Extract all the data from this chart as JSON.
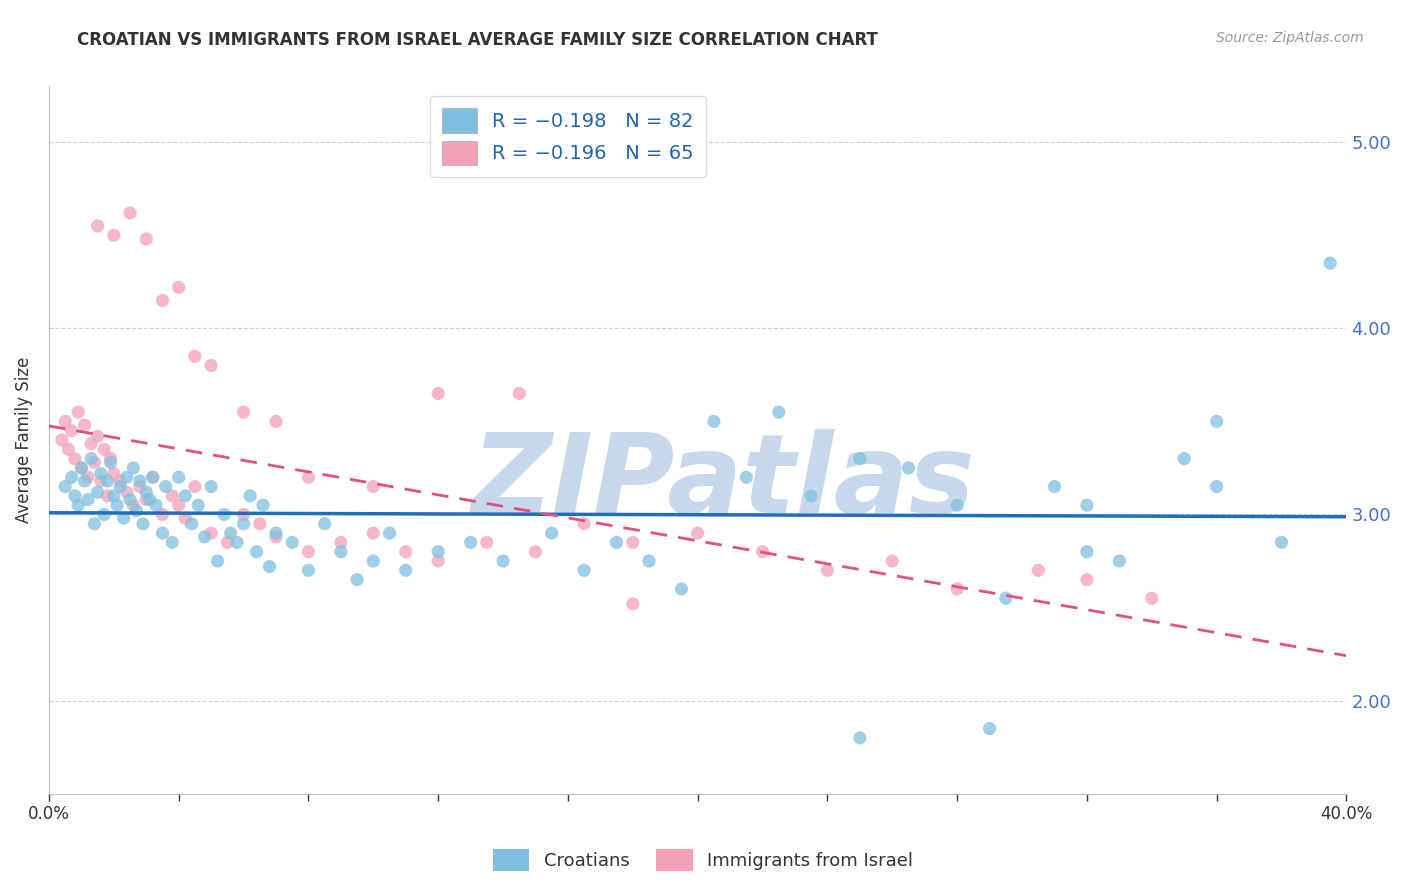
{
  "title": "CROATIAN VS IMMIGRANTS FROM ISRAEL AVERAGE FAMILY SIZE CORRELATION CHART",
  "source": "Source: ZipAtlas.com",
  "ylabel": "Average Family Size",
  "xlim": [
    0.0,
    0.4
  ],
  "ylim": [
    1.5,
    5.3
  ],
  "yticks": [
    2.0,
    3.0,
    4.0,
    5.0
  ],
  "xticks": [
    0.0,
    0.04,
    0.08,
    0.12,
    0.16,
    0.2,
    0.24,
    0.28,
    0.32,
    0.36,
    0.4
  ],
  "xtick_labels": [
    "0.0%",
    "",
    "",
    "",
    "",
    "",
    "",
    "",
    "",
    "",
    "40.0%"
  ],
  "legend_label1": "Croatians",
  "legend_label2": "Immigrants from Israel",
  "blue_color": "#7fbfdf",
  "pink_color": "#f4a0b8",
  "blue_line_color": "#1f6fbf",
  "pink_line_color": "#e05080",
  "background": "#ffffff",
  "watermark": "ZIPatlas",
  "watermark_color": "#c8d8ec",
  "blue_x": [
    0.005,
    0.007,
    0.008,
    0.009,
    0.01,
    0.011,
    0.012,
    0.013,
    0.014,
    0.015,
    0.016,
    0.017,
    0.018,
    0.019,
    0.02,
    0.021,
    0.022,
    0.023,
    0.024,
    0.025,
    0.026,
    0.027,
    0.028,
    0.029,
    0.03,
    0.031,
    0.032,
    0.033,
    0.035,
    0.036,
    0.038,
    0.04,
    0.042,
    0.044,
    0.046,
    0.048,
    0.05,
    0.052,
    0.054,
    0.056,
    0.058,
    0.06,
    0.062,
    0.064,
    0.066,
    0.068,
    0.07,
    0.075,
    0.08,
    0.085,
    0.09,
    0.095,
    0.1,
    0.105,
    0.11,
    0.12,
    0.13,
    0.14,
    0.155,
    0.165,
    0.175,
    0.185,
    0.195,
    0.205,
    0.215,
    0.225,
    0.235,
    0.25,
    0.265,
    0.28,
    0.295,
    0.31,
    0.32,
    0.33,
    0.35,
    0.36,
    0.38,
    0.395,
    0.32,
    0.36,
    0.29,
    0.25
  ],
  "blue_y": [
    3.15,
    3.2,
    3.1,
    3.05,
    3.25,
    3.18,
    3.08,
    3.3,
    2.95,
    3.12,
    3.22,
    3.0,
    3.18,
    3.28,
    3.1,
    3.05,
    3.15,
    2.98,
    3.2,
    3.08,
    3.25,
    3.02,
    3.18,
    2.95,
    3.12,
    3.08,
    3.2,
    3.05,
    2.9,
    3.15,
    2.85,
    3.2,
    3.1,
    2.95,
    3.05,
    2.88,
    3.15,
    2.75,
    3.0,
    2.9,
    2.85,
    2.95,
    3.1,
    2.8,
    3.05,
    2.72,
    2.9,
    2.85,
    2.7,
    2.95,
    2.8,
    2.65,
    2.75,
    2.9,
    2.7,
    2.8,
    2.85,
    2.75,
    2.9,
    2.7,
    2.85,
    2.75,
    2.6,
    3.5,
    3.2,
    3.55,
    3.1,
    3.3,
    3.25,
    3.05,
    2.55,
    3.15,
    3.05,
    2.75,
    3.3,
    3.5,
    2.85,
    4.35,
    2.8,
    3.15,
    1.85,
    1.8
  ],
  "pink_x": [
    0.004,
    0.005,
    0.006,
    0.007,
    0.008,
    0.009,
    0.01,
    0.011,
    0.012,
    0.013,
    0.014,
    0.015,
    0.016,
    0.017,
    0.018,
    0.019,
    0.02,
    0.022,
    0.024,
    0.026,
    0.028,
    0.03,
    0.032,
    0.035,
    0.038,
    0.04,
    0.042,
    0.045,
    0.05,
    0.055,
    0.06,
    0.065,
    0.07,
    0.08,
    0.09,
    0.1,
    0.11,
    0.12,
    0.135,
    0.15,
    0.165,
    0.18,
    0.2,
    0.22,
    0.24,
    0.26,
    0.28,
    0.305,
    0.32,
    0.34,
    0.015,
    0.02,
    0.025,
    0.03,
    0.035,
    0.04,
    0.045,
    0.05,
    0.06,
    0.07,
    0.08,
    0.1,
    0.12,
    0.145,
    0.18
  ],
  "pink_y": [
    3.4,
    3.5,
    3.35,
    3.45,
    3.3,
    3.55,
    3.25,
    3.48,
    3.2,
    3.38,
    3.28,
    3.42,
    3.18,
    3.35,
    3.1,
    3.3,
    3.22,
    3.18,
    3.12,
    3.05,
    3.15,
    3.08,
    3.2,
    3.0,
    3.1,
    3.05,
    2.98,
    3.15,
    2.9,
    2.85,
    3.0,
    2.95,
    2.88,
    2.8,
    2.85,
    2.9,
    2.8,
    2.75,
    2.85,
    2.8,
    2.95,
    2.85,
    2.9,
    2.8,
    2.7,
    2.75,
    2.6,
    2.7,
    2.65,
    2.55,
    4.55,
    4.5,
    4.62,
    4.48,
    4.15,
    4.22,
    3.85,
    3.8,
    3.55,
    3.5,
    3.2,
    3.15,
    3.65,
    3.65,
    2.52
  ]
}
